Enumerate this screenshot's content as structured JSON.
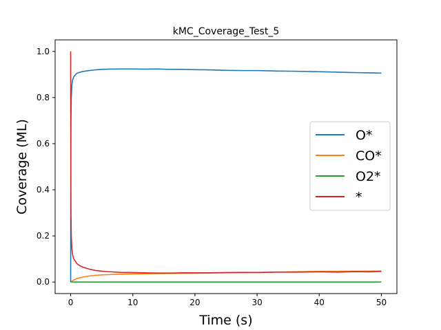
{
  "chart_data": {
    "type": "line",
    "title": "kMC_Coverage_Test_5",
    "xlabel": "Time (s)",
    "ylabel": "Coverage (ML)",
    "xlim": [
      -2.5,
      52.5
    ],
    "ylim": [
      -0.05,
      1.05
    ],
    "xticks": [
      "0",
      "10",
      "20",
      "30",
      "40",
      "50"
    ],
    "xtick_values": [
      0,
      10,
      20,
      30,
      40,
      50
    ],
    "yticks": [
      "0.0",
      "0.2",
      "0.4",
      "0.6",
      "0.8",
      "1.0"
    ],
    "ytick_values": [
      0.0,
      0.2,
      0.4,
      0.6,
      0.8,
      1.0
    ],
    "grid": false,
    "legend_position": "center-right",
    "series": [
      {
        "name": "O*",
        "color": "#1f77b4",
        "x": [
          0,
          0.02,
          0.05,
          0.1,
          0.2,
          0.3,
          0.5,
          0.8,
          1,
          1.5,
          2,
          3,
          4,
          5,
          6,
          8,
          10,
          12,
          14,
          16,
          18,
          20,
          22,
          25,
          28,
          30,
          33,
          36,
          40,
          43,
          46,
          48,
          50
        ],
        "y": [
          0.0,
          0.45,
          0.7,
          0.8,
          0.855,
          0.875,
          0.89,
          0.9,
          0.905,
          0.91,
          0.913,
          0.917,
          0.92,
          0.922,
          0.923,
          0.924,
          0.924,
          0.923,
          0.924,
          0.922,
          0.922,
          0.921,
          0.92,
          0.918,
          0.917,
          0.917,
          0.915,
          0.914,
          0.912,
          0.91,
          0.908,
          0.907,
          0.906
        ]
      },
      {
        "name": "CO*",
        "color": "#ff7f0e",
        "x": [
          0,
          0.2,
          0.5,
          1,
          1.5,
          2,
          3,
          4,
          5,
          6,
          8,
          10,
          12,
          15,
          20,
          25,
          30,
          35,
          40,
          45,
          50
        ],
        "y": [
          0.0,
          0.004,
          0.009,
          0.015,
          0.019,
          0.022,
          0.026,
          0.029,
          0.031,
          0.032,
          0.034,
          0.035,
          0.036,
          0.037,
          0.038,
          0.04,
          0.042,
          0.044,
          0.046,
          0.047,
          0.048
        ]
      },
      {
        "name": "O2*",
        "color": "#2ca02c",
        "x": [
          0,
          10,
          20,
          30,
          40,
          50
        ],
        "y": [
          0.0,
          0.0,
          0.0,
          0.0,
          0.0,
          0.0
        ]
      },
      {
        "name": "*",
        "color": "#d62728",
        "x": [
          0,
          0.02,
          0.05,
          0.1,
          0.2,
          0.3,
          0.5,
          0.8,
          1,
          1.5,
          2,
          3,
          4,
          5,
          6,
          8,
          10,
          12,
          14,
          16,
          18,
          20,
          22,
          25,
          28,
          30,
          33,
          36,
          40,
          43,
          46,
          48,
          50
        ],
        "y": [
          1.0,
          0.55,
          0.3,
          0.2,
          0.145,
          0.12,
          0.1,
          0.088,
          0.08,
          0.07,
          0.064,
          0.056,
          0.05,
          0.047,
          0.045,
          0.042,
          0.041,
          0.04,
          0.039,
          0.039,
          0.04,
          0.04,
          0.04,
          0.041,
          0.042,
          0.041,
          0.043,
          0.043,
          0.044,
          0.043,
          0.045,
          0.044,
          0.046
        ]
      }
    ]
  }
}
